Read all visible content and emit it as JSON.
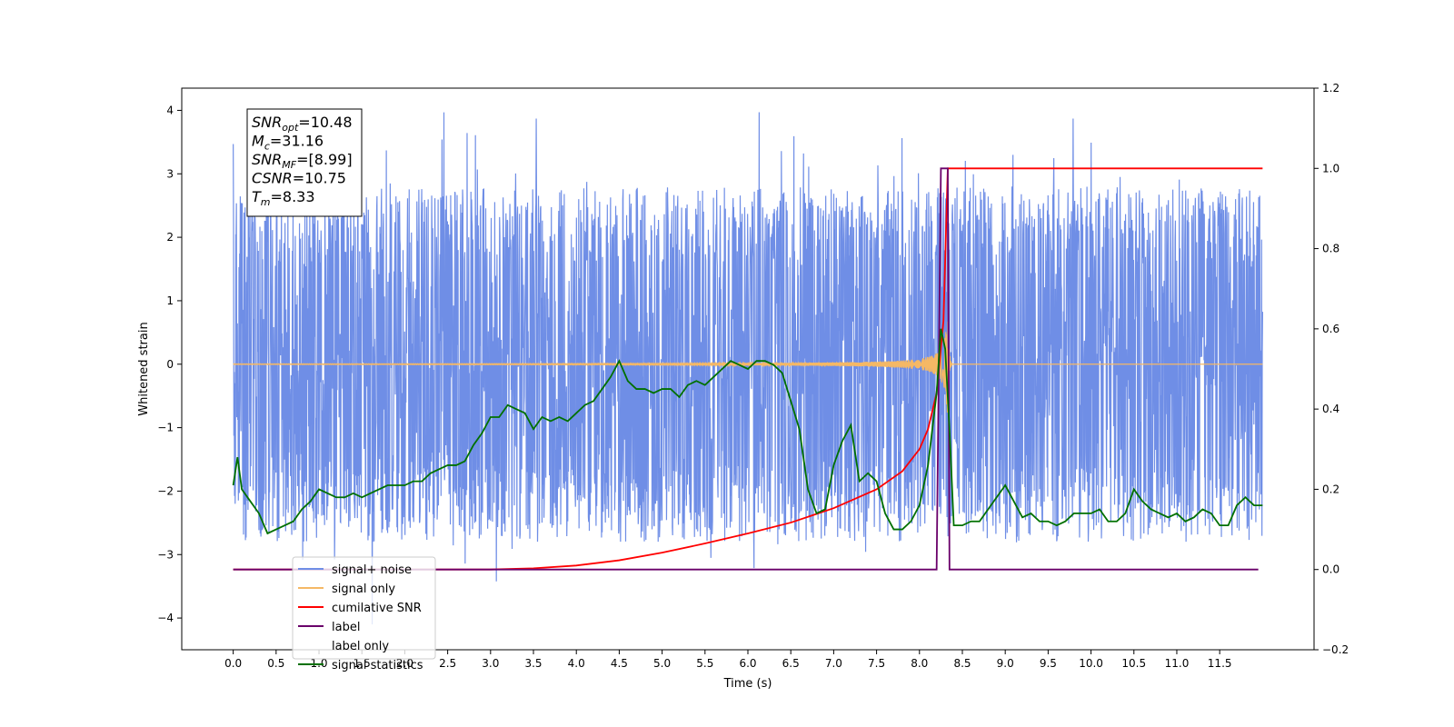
{
  "chart_data": {
    "type": "line",
    "xlabel": "Time (s)",
    "ylabel": "Whitened strain",
    "xlim": [
      -0.6,
      12.6
    ],
    "ylim_left": [
      -4.5,
      4.35
    ],
    "ylim_right": [
      -0.2,
      1.2
    ],
    "x_ticks": [
      0.0,
      0.5,
      1.0,
      1.5,
      2.0,
      2.5,
      3.0,
      3.5,
      4.0,
      4.5,
      5.0,
      5.5,
      6.0,
      6.5,
      7.0,
      7.5,
      8.0,
      8.5,
      9.0,
      9.5,
      10.0,
      10.5,
      11.0,
      11.5
    ],
    "x_tick_labels": [
      "0.0",
      "0.5",
      "1.0",
      "1.5",
      "2.0",
      "2.5",
      "3.0",
      "3.5",
      "4.0",
      "4.5",
      "5.0",
      "5.5",
      "6.0",
      "6.5",
      "7.0",
      "7.5",
      "8.0",
      "8.5",
      "9.0",
      "9.5",
      "10.0",
      "10.5",
      "11.0",
      "11.5"
    ],
    "y_ticks_left": [
      -4,
      -3,
      -2,
      -1,
      0,
      1,
      2,
      3,
      4
    ],
    "y_tick_labels_left": [
      "−4",
      "−3",
      "−2",
      "−1",
      "0",
      "1",
      "2",
      "3",
      "4"
    ],
    "y_ticks_right": [
      -0.2,
      0.0,
      0.2,
      0.4,
      0.6,
      0.8,
      1.0,
      1.2
    ],
    "y_tick_labels_right": [
      "−0.2",
      "0.0",
      "0.2",
      "0.4",
      "0.6",
      "0.8",
      "1.0",
      "1.2"
    ],
    "grid": false,
    "legend_position": "lower-left",
    "annotation": {
      "lines": [
        {
          "base": "SNR",
          "sub": "opt",
          "value": "=10.48"
        },
        {
          "base": "M",
          "sub": "c",
          "value": "=31.16"
        },
        {
          "base": "SNR",
          "sub": "MF",
          "value": "=[8.99]"
        },
        {
          "base": "CSNR",
          "sub": "",
          "value": "=10.75"
        },
        {
          "base": "T",
          "sub": "m",
          "value": "=8.33"
        }
      ]
    },
    "series": [
      {
        "name": "signal+ noise",
        "axis": "left",
        "color": "#6f8ee6",
        "kind": "noise",
        "x_range": [
          0.0,
          12.0
        ],
        "envelope": [
          -4.1,
          3.97
        ]
      },
      {
        "name": "signal only",
        "axis": "left",
        "color": "#f5b865",
        "kind": "chirp",
        "x_range": [
          0.0,
          12.0
        ],
        "merger_time": 8.33,
        "peak_amplitude": 1.0
      },
      {
        "name": "cumilative SNR",
        "axis": "right",
        "color": "#ff0000",
        "x": [
          0.0,
          3.0,
          3.5,
          4.0,
          4.5,
          5.0,
          5.5,
          6.0,
          6.5,
          7.0,
          7.5,
          7.8,
          8.0,
          8.1,
          8.2,
          8.28,
          8.33,
          12.0
        ],
        "y": [
          0.0,
          0.0,
          0.003,
          0.01,
          0.023,
          0.042,
          0.065,
          0.09,
          0.117,
          0.153,
          0.2,
          0.245,
          0.3,
          0.35,
          0.44,
          0.62,
          1.0,
          1.0
        ]
      },
      {
        "name": "label",
        "axis": "right",
        "color": "#6a006a",
        "x": [
          0.0,
          8.2,
          8.25,
          8.33,
          8.35,
          11.95
        ],
        "y": [
          0.0,
          0.0,
          1.0,
          1.0,
          0.0,
          0.0
        ]
      },
      {
        "name": "label only",
        "axis": "right",
        "color": "#c8bfc8",
        "hidden": true,
        "x": [],
        "y": []
      },
      {
        "name": "signal statistics",
        "axis": "right",
        "color": "#007000",
        "x": [
          0.0,
          0.05,
          0.1,
          0.2,
          0.3,
          0.4,
          0.5,
          0.6,
          0.7,
          0.8,
          0.9,
          1.0,
          1.1,
          1.2,
          1.3,
          1.4,
          1.5,
          1.6,
          1.7,
          1.8,
          1.9,
          2.0,
          2.1,
          2.2,
          2.3,
          2.4,
          2.5,
          2.6,
          2.7,
          2.8,
          2.9,
          3.0,
          3.1,
          3.2,
          3.3,
          3.4,
          3.5,
          3.6,
          3.7,
          3.8,
          3.9,
          4.0,
          4.1,
          4.2,
          4.3,
          4.4,
          4.5,
          4.6,
          4.7,
          4.8,
          4.9,
          5.0,
          5.1,
          5.2,
          5.3,
          5.4,
          5.5,
          5.6,
          5.7,
          5.8,
          5.9,
          6.0,
          6.1,
          6.2,
          6.3,
          6.4,
          6.5,
          6.6,
          6.7,
          6.8,
          6.9,
          7.0,
          7.1,
          7.2,
          7.3,
          7.4,
          7.5,
          7.6,
          7.7,
          7.8,
          7.9,
          8.0,
          8.1,
          8.2,
          8.25,
          8.3,
          8.35,
          8.4,
          8.5,
          8.6,
          8.7,
          8.8,
          8.9,
          9.0,
          9.1,
          9.2,
          9.3,
          9.4,
          9.5,
          9.6,
          9.7,
          9.8,
          9.9,
          10.0,
          10.1,
          10.2,
          10.3,
          10.4,
          10.5,
          10.6,
          10.7,
          10.8,
          10.9,
          11.0,
          11.1,
          11.2,
          11.3,
          11.4,
          11.5,
          11.6,
          11.7,
          11.8,
          11.9,
          12.0
        ],
        "y": [
          0.21,
          0.28,
          0.2,
          0.17,
          0.14,
          0.09,
          0.1,
          0.11,
          0.12,
          0.15,
          0.17,
          0.2,
          0.19,
          0.18,
          0.18,
          0.19,
          0.18,
          0.19,
          0.2,
          0.21,
          0.21,
          0.21,
          0.22,
          0.22,
          0.24,
          0.25,
          0.26,
          0.26,
          0.27,
          0.31,
          0.34,
          0.38,
          0.38,
          0.41,
          0.4,
          0.39,
          0.35,
          0.38,
          0.37,
          0.38,
          0.37,
          0.39,
          0.41,
          0.42,
          0.45,
          0.48,
          0.52,
          0.47,
          0.45,
          0.45,
          0.44,
          0.45,
          0.45,
          0.43,
          0.46,
          0.47,
          0.46,
          0.48,
          0.5,
          0.52,
          0.51,
          0.5,
          0.52,
          0.52,
          0.51,
          0.49,
          0.42,
          0.35,
          0.2,
          0.14,
          0.15,
          0.26,
          0.32,
          0.36,
          0.22,
          0.24,
          0.22,
          0.14,
          0.1,
          0.1,
          0.12,
          0.16,
          0.26,
          0.44,
          0.6,
          0.55,
          0.35,
          0.11,
          0.11,
          0.12,
          0.12,
          0.15,
          0.18,
          0.21,
          0.17,
          0.13,
          0.14,
          0.12,
          0.12,
          0.11,
          0.12,
          0.14,
          0.14,
          0.14,
          0.15,
          0.12,
          0.12,
          0.14,
          0.2,
          0.17,
          0.15,
          0.14,
          0.13,
          0.14,
          0.12,
          0.13,
          0.15,
          0.14,
          0.11,
          0.11,
          0.16,
          0.18,
          0.16,
          0.16
        ]
      }
    ]
  }
}
